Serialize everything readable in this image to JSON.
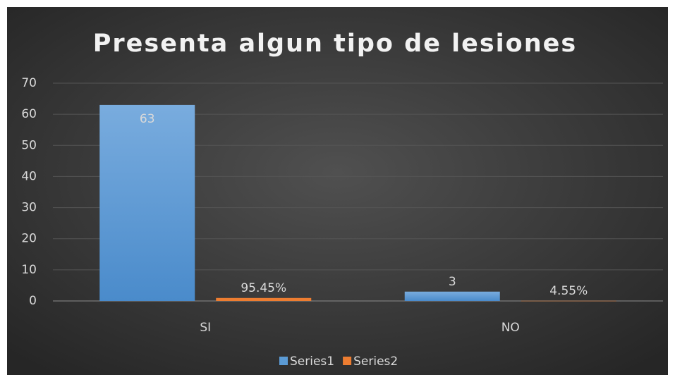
{
  "chart_data": {
    "type": "bar",
    "title": "Presenta algun tipo de lesiones",
    "categories": [
      "SI",
      "NO"
    ],
    "series": [
      {
        "name": "Series1",
        "color": "#5b9bd5",
        "values": [
          63,
          3
        ]
      },
      {
        "name": "Series2",
        "color": "#ed7d31",
        "values": [
          0.9545,
          0.0455
        ],
        "value_labels": [
          "95.45%",
          "4.55%"
        ]
      }
    ],
    "ylim": [
      0,
      70
    ],
    "yticks": [
      0,
      10,
      20,
      30,
      40,
      50,
      60,
      70
    ],
    "grid": true,
    "legend": "bottom"
  }
}
